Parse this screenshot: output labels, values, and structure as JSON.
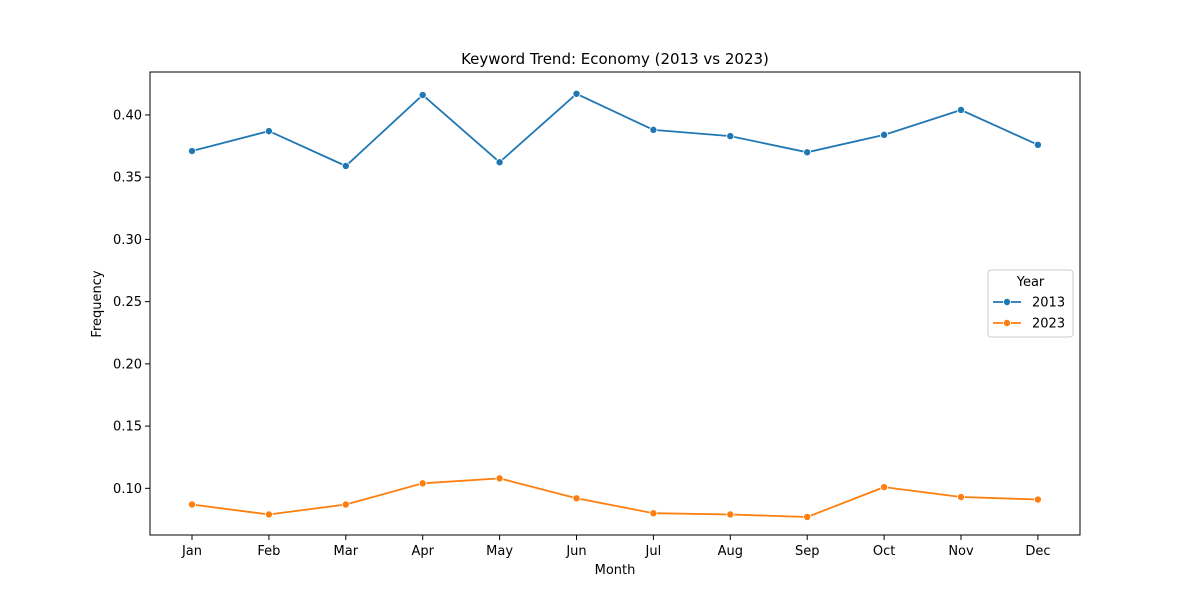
{
  "chart_data": {
    "type": "line",
    "title": "Keyword Trend: Economy (2013 vs 2023)",
    "xlabel": "Month",
    "ylabel": "Frequency",
    "categories": [
      "Jan",
      "Feb",
      "Mar",
      "Apr",
      "May",
      "Jun",
      "Jul",
      "Aug",
      "Sep",
      "Oct",
      "Nov",
      "Dec"
    ],
    "ylim": [
      0.0625,
      0.4345
    ],
    "yticks": [
      "0.10",
      "0.15",
      "0.20",
      "0.25",
      "0.30",
      "0.35",
      "0.40"
    ],
    "legend": {
      "title": "Year",
      "placement": "center-right"
    },
    "grid": false,
    "series": [
      {
        "name": "2013",
        "color": "#1f77b4",
        "values": [
          0.371,
          0.387,
          0.359,
          0.416,
          0.362,
          0.417,
          0.388,
          0.383,
          0.37,
          0.384,
          0.404,
          0.376
        ]
      },
      {
        "name": "2023",
        "color": "#ff7f0e",
        "values": [
          0.087,
          0.079,
          0.087,
          0.104,
          0.108,
          0.092,
          0.08,
          0.079,
          0.077,
          0.101,
          0.093,
          0.091
        ]
      }
    ]
  }
}
